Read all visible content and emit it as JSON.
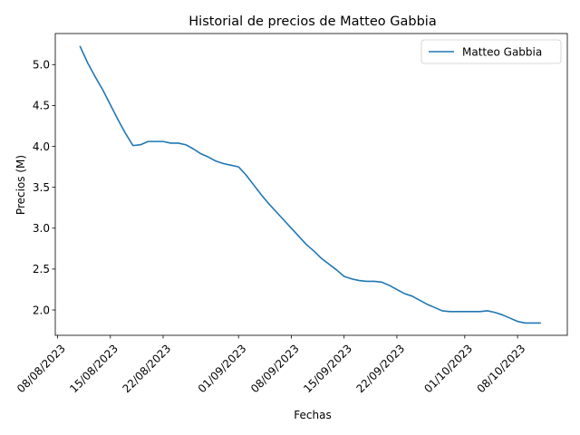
{
  "chart_data": {
    "type": "line",
    "title": "Historial de precios de Matteo Gabbia",
    "xlabel": "Fechas",
    "ylabel": "Precios (M)",
    "xlim": [
      -0.3,
      67.6
    ],
    "ylim": [
      1.69,
      5.38
    ],
    "grid": false,
    "legend_position": "top-right",
    "x_ticks": [
      {
        "day": 0,
        "label": "08/08/2023"
      },
      {
        "day": 7,
        "label": "15/08/2023"
      },
      {
        "day": 14,
        "label": "22/08/2023"
      },
      {
        "day": 24,
        "label": "01/09/2023"
      },
      {
        "day": 31,
        "label": "08/09/2023"
      },
      {
        "day": 38,
        "label": "15/09/2023"
      },
      {
        "day": 45,
        "label": "22/09/2023"
      },
      {
        "day": 54,
        "label": "01/10/2023"
      },
      {
        "day": 61,
        "label": "08/10/2023"
      }
    ],
    "y_ticks": [
      {
        "value": 2.0,
        "label": "2.0"
      },
      {
        "value": 2.5,
        "label": "2.5"
      },
      {
        "value": 3.0,
        "label": "3.0"
      },
      {
        "value": 3.5,
        "label": "3.5"
      },
      {
        "value": 4.0,
        "label": "4.0"
      },
      {
        "value": 4.5,
        "label": "4.5"
      },
      {
        "value": 5.0,
        "label": "5.0"
      }
    ],
    "series": [
      {
        "name": "Matteo Gabbia",
        "color": "#1f77b4",
        "x": [
          3,
          4,
          5,
          6,
          7,
          8,
          9,
          10,
          11,
          12,
          13,
          14,
          15,
          16,
          17,
          18,
          19,
          20,
          21,
          22,
          23,
          24,
          25,
          26,
          27,
          28,
          29,
          30,
          31,
          32,
          33,
          34,
          35,
          36,
          37,
          38,
          39,
          40,
          41,
          42,
          43,
          44,
          45,
          46,
          47,
          48,
          49,
          50,
          51,
          52,
          53,
          54,
          55,
          56,
          57,
          58,
          59,
          60,
          61,
          62,
          63,
          64
        ],
        "y": [
          5.22,
          5.02,
          4.85,
          4.69,
          4.51,
          4.33,
          4.16,
          4.01,
          4.02,
          4.06,
          4.06,
          4.06,
          4.04,
          4.04,
          4.02,
          3.97,
          3.91,
          3.87,
          3.82,
          3.79,
          3.77,
          3.75,
          3.65,
          3.53,
          3.41,
          3.3,
          3.2,
          3.1,
          3.0,
          2.9,
          2.8,
          2.72,
          2.63,
          2.56,
          2.49,
          2.41,
          2.38,
          2.36,
          2.35,
          2.35,
          2.34,
          2.3,
          2.25,
          2.2,
          2.17,
          2.12,
          2.07,
          2.03,
          1.99,
          1.98,
          1.98,
          1.98,
          1.98,
          1.98,
          1.99,
          1.97,
          1.94,
          1.9,
          1.86,
          1.84,
          1.84,
          1.84
        ]
      }
    ]
  }
}
